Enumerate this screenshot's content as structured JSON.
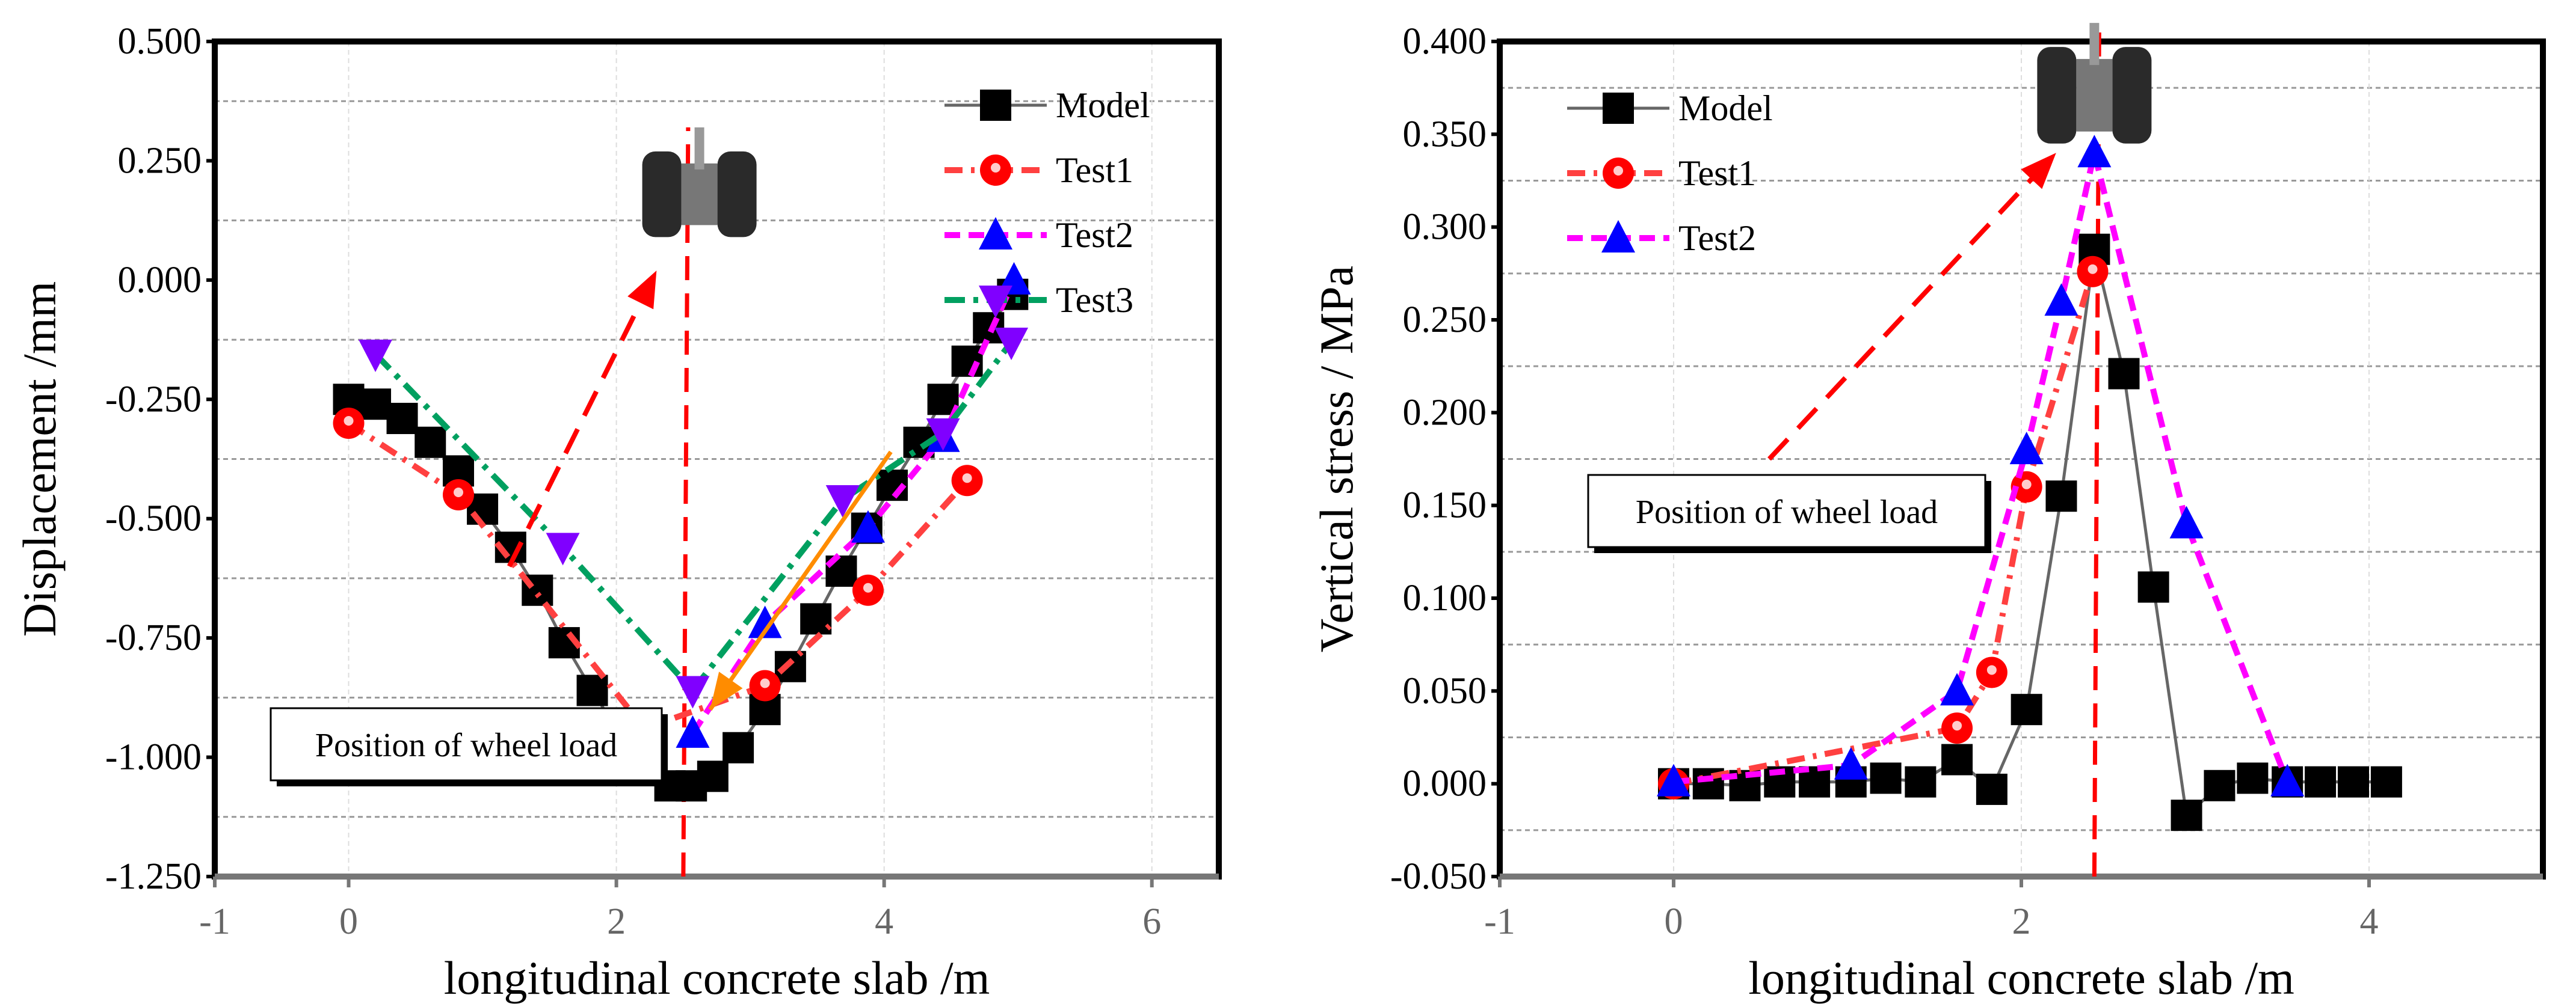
{
  "chart_data": [
    {
      "type": "line",
      "xlabel": "longitudinal concrete  slab /m",
      "ylabel": "Displacement /mm",
      "xlim": [
        -1,
        6.5
      ],
      "ylim": [
        -1.25,
        0.5
      ],
      "xticks": [
        -1,
        0,
        2,
        4,
        6
      ],
      "xtick_labels": [
        "-1",
        "0",
        "2",
        "4",
        "6"
      ],
      "yticks": [
        0.5,
        0.25,
        0,
        -0.25,
        -0.5,
        -0.75,
        -1,
        -1.25
      ],
      "ytick_labels": [
        "0.500",
        "0.250",
        "0.000",
        "-0.250",
        "-0.500",
        "-0.750",
        "-1.000",
        "-1.250"
      ],
      "grid": true,
      "legend_position": "top-right",
      "annotation": "Position of wheel load",
      "wheel_load_x": 2.5,
      "series": [
        {
          "name": "Model",
          "color": "#666666",
          "marker": "square",
          "marker_color": "#000000",
          "x": [
            0,
            0.2,
            0.4,
            0.61,
            0.82,
            1.0,
            1.21,
            1.41,
            1.61,
            1.82,
            2.02,
            2.21,
            2.4,
            2.56,
            2.72,
            2.91,
            3.11,
            3.3,
            3.49,
            3.68,
            3.87,
            4.06,
            4.26,
            4.44,
            4.62,
            4.78,
            4.96
          ],
          "y": [
            -0.25,
            -0.26,
            -0.29,
            -0.34,
            -0.4,
            -0.48,
            -0.56,
            -0.65,
            -0.76,
            -0.86,
            -0.95,
            -1.02,
            -1.06,
            -1.06,
            -1.04,
            -0.98,
            -0.9,
            -0.81,
            -0.71,
            -0.61,
            -0.52,
            -0.43,
            -0.34,
            -0.25,
            -0.17,
            -0.1,
            -0.03
          ]
        },
        {
          "name": "Test1",
          "color": "#ff4040",
          "marker": "circle",
          "marker_color": "#ff0000",
          "x": [
            0,
            0.82,
            2.21,
            3.11,
            3.88,
            4.62
          ],
          "y": [
            -0.3,
            -0.45,
            -0.94,
            -0.85,
            -0.65,
            -0.42
          ]
        },
        {
          "name": "Test2",
          "color": "#ff00ff",
          "marker": "triangle-up",
          "marker_color": "#0000ff",
          "x": [
            2.57,
            3.11,
            3.88,
            4.44,
            4.97
          ],
          "y": [
            -0.95,
            -0.72,
            -0.52,
            -0.33,
            0.0
          ]
        },
        {
          "name": "Test3",
          "color": "#00a060",
          "marker": "triangle-down",
          "marker_color": "#8000ff",
          "x": [
            0.2,
            1.6,
            2.57,
            3.69,
            4.44,
            4.95
          ],
          "y": [
            -0.155,
            -0.56,
            -0.86,
            -0.46,
            -0.32,
            -0.13
          ]
        }
      ]
    },
    {
      "type": "line",
      "xlabel": "longitudinal concrete  slab /m",
      "ylabel": "Vertical stress / MPa",
      "xlim": [
        -1,
        5
      ],
      "ylim": [
        -0.05,
        0.4
      ],
      "xticks": [
        -1,
        0,
        2,
        4
      ],
      "xtick_labels": [
        "-1",
        "0",
        "2",
        "4"
      ],
      "yticks": [
        0.4,
        0.35,
        0.3,
        0.25,
        0.2,
        0.15,
        0.1,
        0.05,
        0,
        -0.05
      ],
      "ytick_labels": [
        "0.400",
        "0.350",
        "0.300",
        "0.250",
        "0.200",
        "0.150",
        "0.100",
        "0.050",
        "0.000",
        "-0.050"
      ],
      "grid": true,
      "legend_position": "top-left",
      "annotation": "Position of wheel load",
      "wheel_load_x": 2.42,
      "series": [
        {
          "name": "Model",
          "color": "#666666",
          "marker": "square",
          "marker_color": "#000000",
          "x": [
            0,
            0.2,
            0.41,
            0.61,
            0.81,
            1.02,
            1.22,
            1.42,
            1.63,
            1.83,
            2.03,
            2.23,
            2.42,
            2.59,
            2.76,
            2.95,
            3.14,
            3.33,
            3.53,
            3.72,
            3.91,
            4.1
          ],
          "y": [
            0.0,
            0.0,
            -0.001,
            0.001,
            0.001,
            0.001,
            0.003,
            0.001,
            0.013,
            -0.003,
            0.04,
            0.155,
            0.288,
            0.221,
            0.106,
            -0.017,
            -0.001,
            0.003,
            0.001,
            0.001,
            0.001,
            0.001
          ]
        },
        {
          "name": "Test1",
          "color": "#ff4040",
          "marker": "circle",
          "marker_color": "#ff0000",
          "x": [
            0,
            1.63,
            1.83,
            2.03,
            2.41
          ],
          "y": [
            0.0,
            0.03,
            0.06,
            0.16,
            0.276
          ]
        },
        {
          "name": "Test2",
          "color": "#ff00ff",
          "marker": "triangle-up",
          "marker_color": "#0000ff",
          "x": [
            0,
            1.02,
            1.63,
            2.03,
            2.23,
            2.42,
            2.95,
            3.53
          ],
          "y": [
            0.001,
            0.01,
            0.05,
            0.18,
            0.26,
            0.34,
            0.14,
            0.001
          ]
        }
      ]
    }
  ]
}
